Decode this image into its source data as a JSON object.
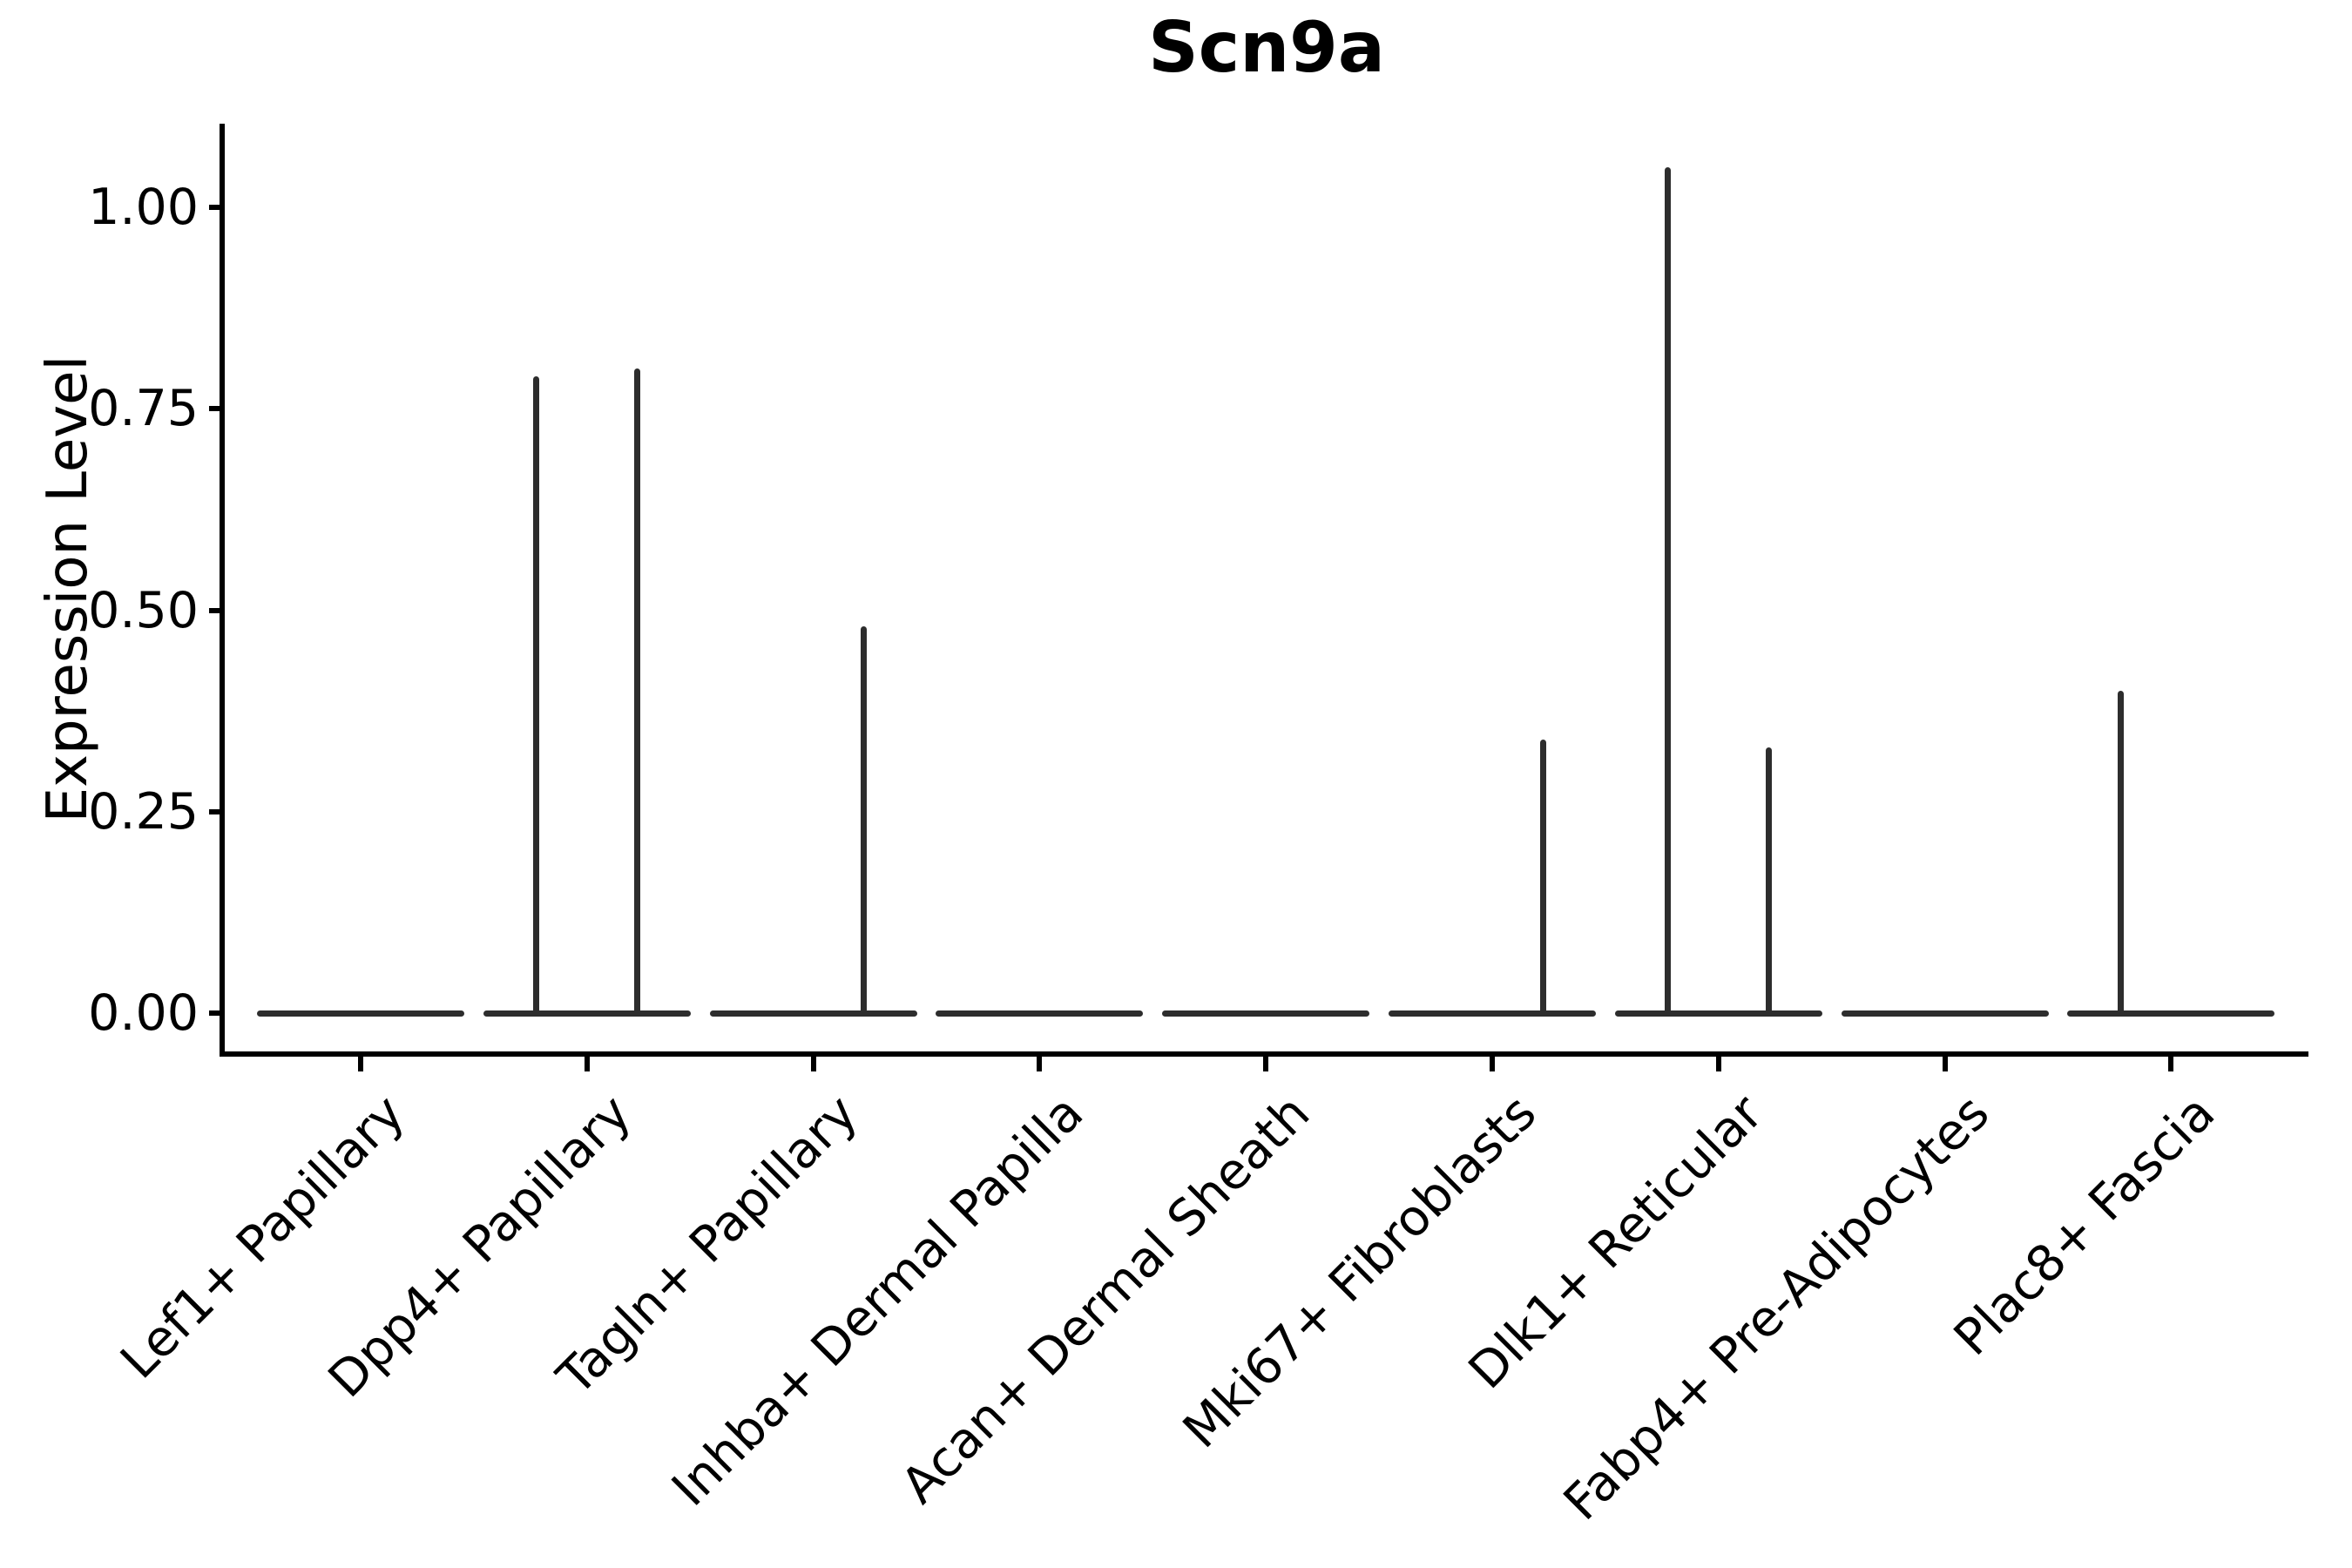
{
  "figure": {
    "background": "#ffffff",
    "axis_color": "#000000",
    "violin_color": "#2d2d2d",
    "text_color": "#000000"
  },
  "chart_data": {
    "type": "violin",
    "title": "Scn9a",
    "xlabel": "",
    "ylabel": "Expression Level",
    "ylim": [
      0,
      1.1
    ],
    "grid": false,
    "legend_position": "none",
    "yticks": [
      {
        "label": "1.00",
        "value": 1.0
      },
      {
        "label": "0.75",
        "value": 0.75
      },
      {
        "label": "0.50",
        "value": 0.5
      },
      {
        "label": "0.25",
        "value": 0.25
      },
      {
        "label": "0.00",
        "value": 0.0
      }
    ],
    "categories": [
      "Lef1+ Papillary",
      "Dpp4+ Papillary",
      "Tagln+ Papillary",
      "Inhba+ Dermal Papilla",
      "Acan+ Dermal Sheath",
      "Mki67+ Fibroblasts",
      "Dlk1+ Reticular",
      "Fabp4+ Pre-Adipocytes",
      "Plac8+ Fascia"
    ],
    "violins": [
      {
        "category": "Lef1+ Papillary",
        "base_value": 0,
        "spike_left": null,
        "spike_right": null
      },
      {
        "category": "Dpp4+ Papillary",
        "base_value": 0,
        "spike_left": 0.79,
        "spike_right": 0.8
      },
      {
        "category": "Tagln+ Papillary",
        "base_value": 0,
        "spike_left": null,
        "spike_right": 0.48
      },
      {
        "category": "Inhba+ Dermal Papilla",
        "base_value": 0,
        "spike_left": null,
        "spike_right": null
      },
      {
        "category": "Acan+ Dermal Sheath",
        "base_value": 0,
        "spike_left": null,
        "spike_right": null
      },
      {
        "category": "Mki67+ Fibroblasts",
        "base_value": 0,
        "spike_left": null,
        "spike_right": 0.34
      },
      {
        "category": "Dlk1+ Reticular",
        "base_value": 0,
        "spike_left": 1.05,
        "spike_right": 0.33
      },
      {
        "category": "Fabp4+ Pre-Adipocytes",
        "base_value": 0,
        "spike_left": null,
        "spike_right": null
      },
      {
        "category": "Plac8+ Fascia",
        "base_value": 0,
        "spike_left": 0.4,
        "spike_right": null
      }
    ],
    "annotation": "Each cell type shows a flat violin base at expression 0; thin vertical spikes mark the maximum expression of rare expressing cells, drawn at the left/right sub-violin centers."
  }
}
